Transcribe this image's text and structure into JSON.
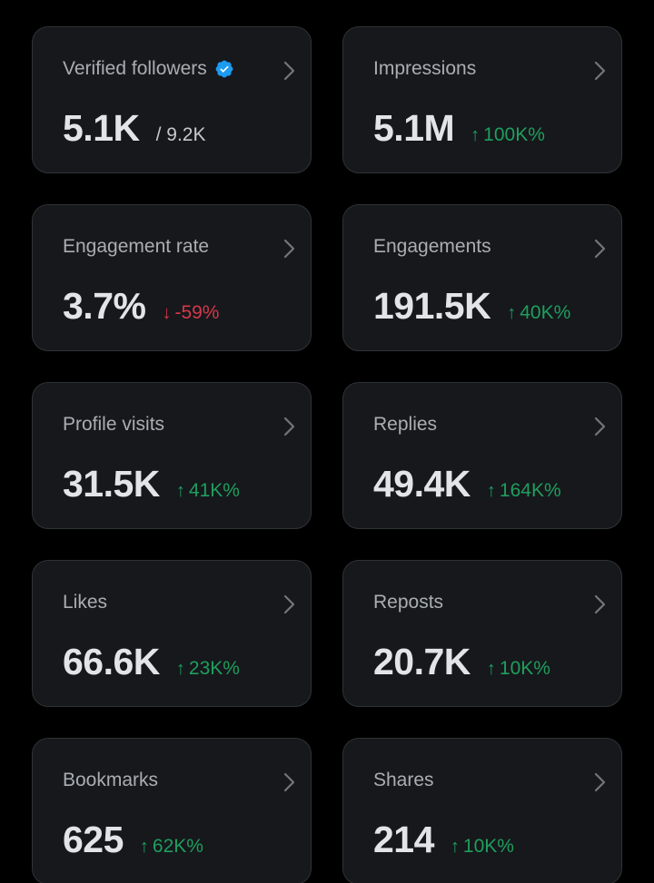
{
  "colors": {
    "background": "#000000",
    "card": "#16181c",
    "border": "#2f3336",
    "label": "#a9aeb3",
    "value": "#e2e5e8",
    "up": "#1f9e5d",
    "down": "#d6384a",
    "verified": "#1d9bf0"
  },
  "cards": [
    {
      "label": "Verified followers",
      "value": "5.1K",
      "sub": "/ 9.2K",
      "verified": true,
      "icon": "chevron-right-icon"
    },
    {
      "label": "Impressions",
      "value": "5.1M",
      "change": "100K%",
      "direction": "up",
      "icon": "chevron-right-icon"
    },
    {
      "label": "Engagement rate",
      "value": "3.7%",
      "change": "-59%",
      "direction": "down",
      "icon": "chevron-right-icon"
    },
    {
      "label": "Engagements",
      "value": "191.5K",
      "change": "40K%",
      "direction": "up",
      "icon": "chevron-right-icon"
    },
    {
      "label": "Profile visits",
      "value": "31.5K",
      "change": "41K%",
      "direction": "up",
      "icon": "chevron-right-icon"
    },
    {
      "label": "Replies",
      "value": "49.4K",
      "change": "164K%",
      "direction": "up",
      "icon": "chevron-right-icon"
    },
    {
      "label": "Likes",
      "value": "66.6K",
      "change": "23K%",
      "direction": "up",
      "icon": "chevron-right-icon"
    },
    {
      "label": "Reposts",
      "value": "20.7K",
      "change": "10K%",
      "direction": "up",
      "icon": "chevron-right-icon"
    },
    {
      "label": "Bookmarks",
      "value": "625",
      "change": "62K%",
      "direction": "up",
      "icon": "chevron-right-icon"
    },
    {
      "label": "Shares",
      "value": "214",
      "change": "10K%",
      "direction": "up",
      "icon": "chevron-right-icon"
    }
  ]
}
